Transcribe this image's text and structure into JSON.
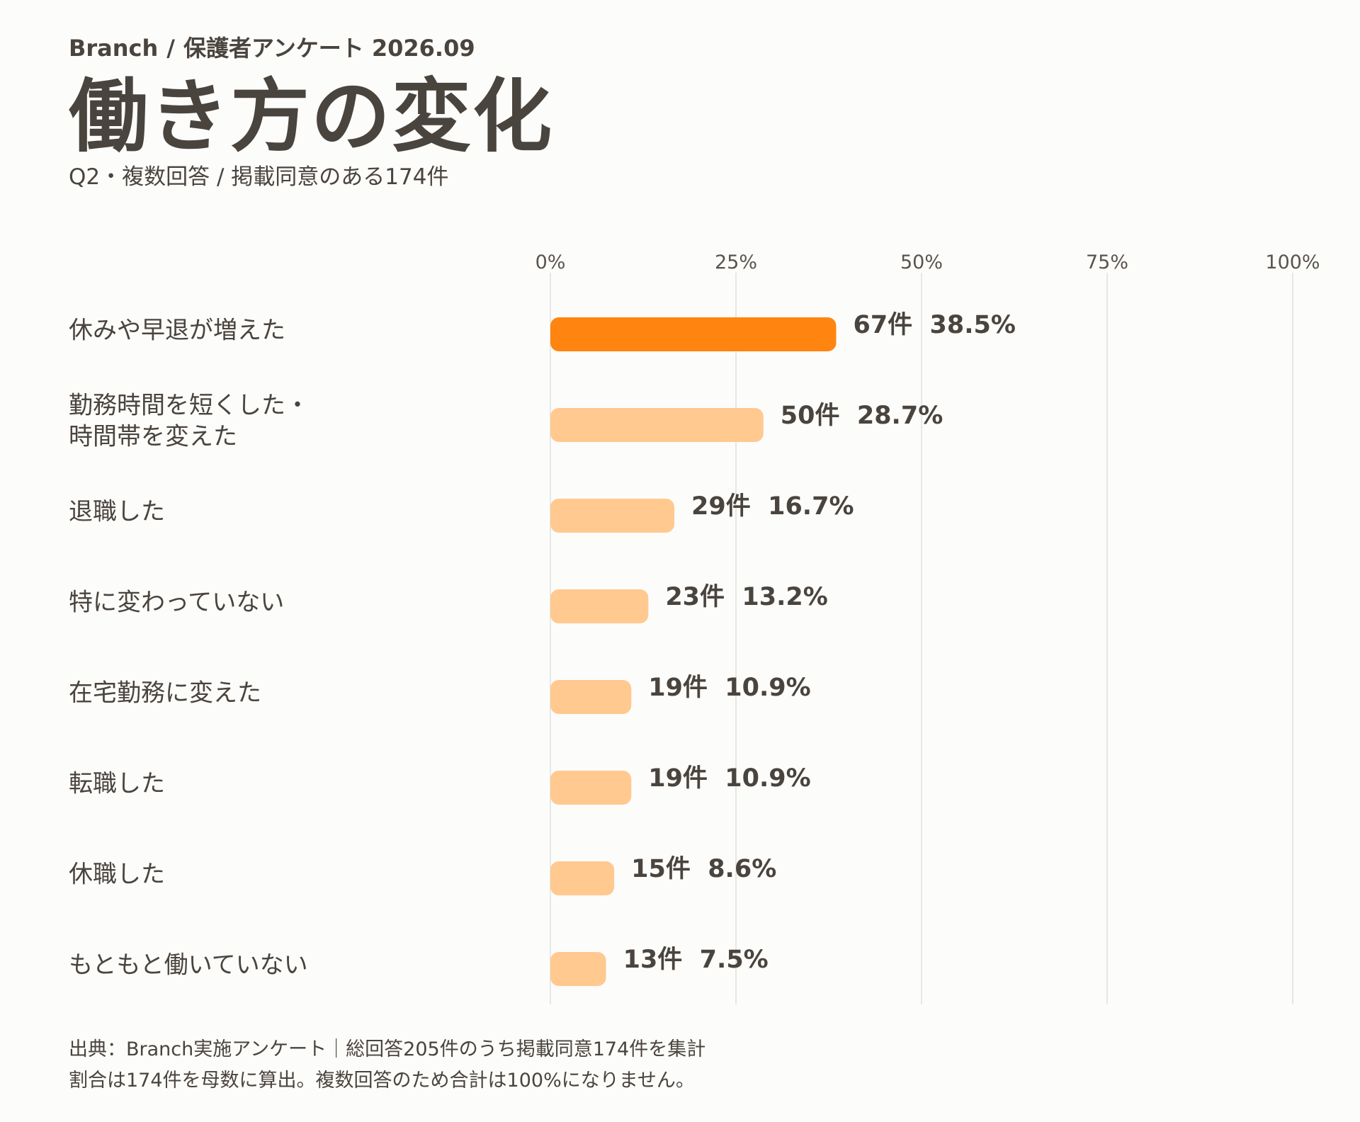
{
  "header": {
    "brand": "Branch",
    "separator": "/",
    "survey": "保護者アンケート 2026.09",
    "title": "働き方の変化",
    "subtitle": "Q2・複数回答 / 掲載同意のある174件"
  },
  "chart_data": {
    "type": "bar",
    "orientation": "horizontal",
    "xlim": [
      0,
      100
    ],
    "x_ticks": [
      "0%",
      "25%",
      "50%",
      "75%",
      "100%"
    ],
    "grid": true,
    "categories": [
      [
        "休みや早退が増えた"
      ],
      [
        "勤務時間を短くした・",
        "時間帯を変えた"
      ],
      [
        "退職した"
      ],
      [
        "特に変わっていない"
      ],
      [
        "在宅勤務に変えた"
      ],
      [
        "転職した"
      ],
      [
        "休職した"
      ],
      [
        "もともと働いていない"
      ]
    ],
    "counts": [
      67,
      50,
      29,
      23,
      19,
      19,
      15,
      13
    ],
    "values": [
      38.5,
      28.7,
      16.7,
      13.2,
      10.9,
      10.9,
      8.6,
      7.5
    ],
    "value_labels": [
      "67件  38.5%",
      "50件  28.7%",
      "29件  16.7%",
      "23件  13.2%",
      "19件  10.9%",
      "19件  10.9%",
      "15件  8.6%",
      "13件  7.5%"
    ],
    "highlight_index": 0,
    "colors": {
      "highlight": "#ff8510",
      "bar": "#ffc98f",
      "grid": "#e2e0dc"
    }
  },
  "footer": {
    "line1": "出典：Branch実施アンケート｜総回答205件のうち掲載同意174件を集計",
    "line2": "割合は174件を母数に算出。複数回答のため合計は100%になりません。"
  }
}
